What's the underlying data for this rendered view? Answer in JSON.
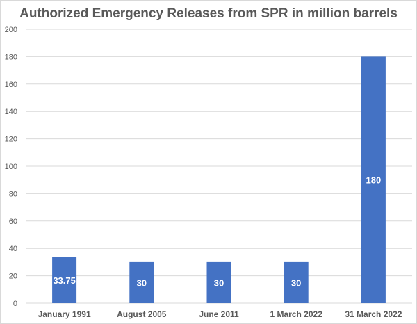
{
  "chart_data": {
    "type": "bar",
    "title": "Authorized Emergency Releases from SPR in million barrels",
    "xlabel": "",
    "ylabel": "",
    "categories": [
      "January 1991",
      "August 2005",
      "June 2011",
      "1 March 2022",
      "31 March 2022"
    ],
    "values": [
      33.75,
      30,
      30,
      30,
      180
    ],
    "data_labels": [
      "33.75",
      "30",
      "30",
      "30",
      "180"
    ],
    "ylim": [
      0,
      200
    ],
    "y_ticks": [
      0,
      20,
      40,
      60,
      80,
      100,
      120,
      140,
      160,
      180,
      200
    ],
    "grid": true,
    "legend": "none",
    "colors": {
      "bar": "#4472c4",
      "grid": "#d9d9d9",
      "tick_text": "#595959",
      "title_text": "#595959",
      "label_text": "#ffffff"
    }
  }
}
